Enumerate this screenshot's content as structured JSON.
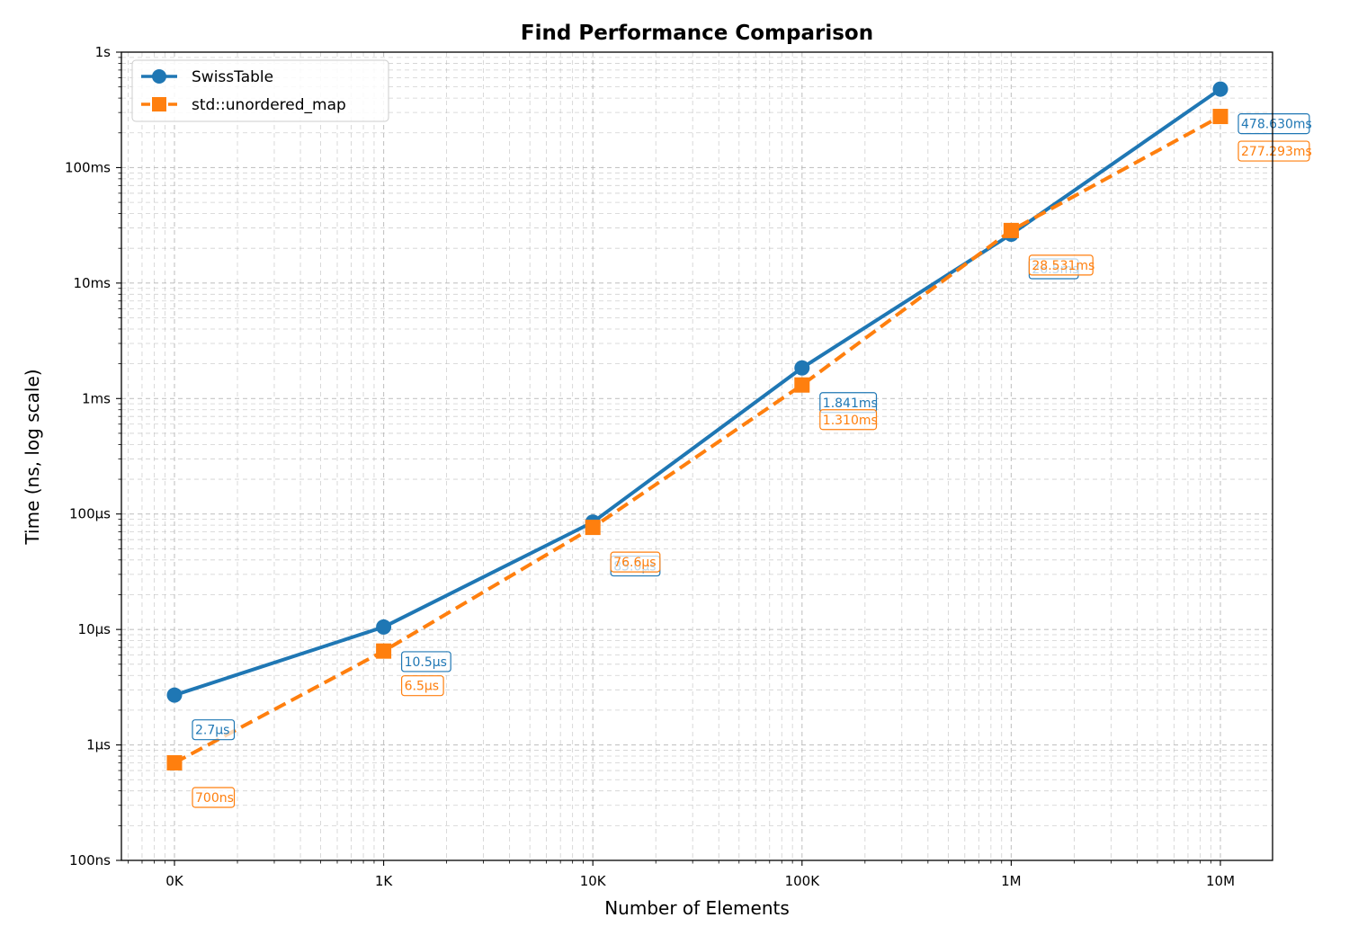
{
  "chart_data": {
    "type": "line",
    "title": "Find Performance Comparison",
    "xlabel": "Number of Elements",
    "ylabel": "Time (ns, log scale)",
    "x_scale": "log",
    "y_scale": "log",
    "grid": true,
    "legend_position": "top-left",
    "x": [
      100,
      1000,
      10000,
      100000,
      1000000,
      10000000
    ],
    "xtick_labels": [
      "0K",
      "1K",
      "10K",
      "100K",
      "1M",
      "10M"
    ],
    "ylim": [
      100,
      1000000000
    ],
    "ytick_values": [
      100,
      1000,
      10000,
      100000,
      1000000,
      10000000,
      100000000,
      1000000000
    ],
    "ytick_labels": [
      "100ns",
      "1µs",
      "10µs",
      "100µs",
      "1ms",
      "10ms",
      "100ms",
      "1s"
    ],
    "series": [
      {
        "name": "SwissTable",
        "color": "#1f77b4",
        "marker": "circle",
        "line_style": "solid",
        "values": [
          2700,
          10500,
          85000,
          1841000,
          26500000,
          478630000
        ],
        "labels": [
          "2.7µs",
          "10.5µs",
          "85.0µs",
          "1.841ms",
          "26.5ms",
          "478.630ms"
        ]
      },
      {
        "name": "std::unordered_map",
        "color": "#ff7f0e",
        "marker": "square",
        "line_style": "dashed",
        "values": [
          700,
          6500,
          76600,
          1310000,
          28531000,
          277293000
        ],
        "labels": [
          "700ns",
          "6.5µs",
          "76.6µs",
          "1.310ms",
          "28.531ms",
          "277.293ms"
        ]
      }
    ]
  }
}
